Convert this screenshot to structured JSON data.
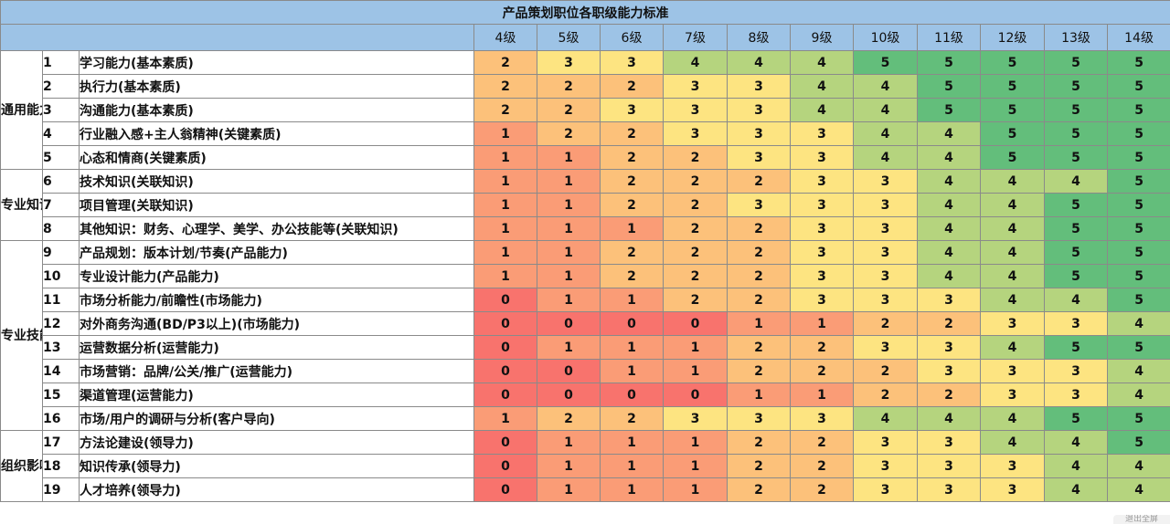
{
  "title": "产品策划职位各职级能力标准",
  "levels": [
    "4级",
    "5级",
    "6级",
    "7级",
    "8级",
    "9级",
    "10级",
    "11级",
    "12级",
    "13级",
    "14级"
  ],
  "color_scale": {
    "0": "#f8736d",
    "1": "#fa9c76",
    "2": "#fcc17a",
    "3": "#fde481",
    "4": "#b5d47e",
    "5": "#63be7b"
  },
  "groups": [
    {
      "label": "通用能力",
      "rows": [
        {
          "idx": "1",
          "name": "学习能力(基本素质)",
          "values": [
            2,
            3,
            3,
            4,
            4,
            4,
            5,
            5,
            5,
            5,
            5
          ]
        },
        {
          "idx": "2",
          "name": "执行力(基本素质)",
          "values": [
            2,
            2,
            2,
            3,
            3,
            4,
            4,
            5,
            5,
            5,
            5
          ]
        },
        {
          "idx": "3",
          "name": "沟通能力(基本素质)",
          "values": [
            2,
            2,
            3,
            3,
            3,
            4,
            4,
            5,
            5,
            5,
            5
          ]
        },
        {
          "idx": "4",
          "name": "行业融入感+主人翁精神(关键素质)",
          "values": [
            1,
            2,
            2,
            3,
            3,
            3,
            4,
            4,
            5,
            5,
            5
          ]
        },
        {
          "idx": "5",
          "name": "心态和情商(关键素质)",
          "values": [
            1,
            1,
            2,
            2,
            3,
            3,
            4,
            4,
            5,
            5,
            5
          ]
        }
      ]
    },
    {
      "label": "专业知识",
      "rows": [
        {
          "idx": "6",
          "name": "技术知识(关联知识)",
          "values": [
            1,
            1,
            2,
            2,
            2,
            3,
            3,
            4,
            4,
            4,
            5
          ]
        },
        {
          "idx": "7",
          "name": "项目管理(关联知识)",
          "values": [
            1,
            1,
            2,
            2,
            3,
            3,
            3,
            4,
            4,
            5,
            5
          ]
        },
        {
          "idx": "8",
          "name": "其他知识：财务、心理学、美学、办公技能等(关联知识)",
          "values": [
            1,
            1,
            1,
            2,
            2,
            3,
            3,
            4,
            4,
            5,
            5
          ]
        }
      ]
    },
    {
      "label": "专业技能",
      "rows": [
        {
          "idx": "9",
          "name": "产品规划：版本计划/节奏(产品能力)",
          "values": [
            1,
            1,
            2,
            2,
            2,
            3,
            3,
            4,
            4,
            5,
            5
          ]
        },
        {
          "idx": "10",
          "name": "专业设计能力(产品能力)",
          "values": [
            1,
            1,
            2,
            2,
            2,
            3,
            3,
            4,
            4,
            5,
            5
          ]
        },
        {
          "idx": "11",
          "name": "市场分析能力/前瞻性(市场能力)",
          "values": [
            0,
            1,
            1,
            2,
            2,
            3,
            3,
            3,
            4,
            4,
            5
          ]
        },
        {
          "idx": "12",
          "name": "对外商务沟通(BD/P3以上)(市场能力)",
          "values": [
            0,
            0,
            0,
            0,
            1,
            1,
            2,
            2,
            3,
            3,
            4
          ]
        },
        {
          "idx": "13",
          "name": "运营数据分析(运营能力)",
          "values": [
            0,
            1,
            1,
            1,
            2,
            2,
            3,
            3,
            4,
            5,
            5
          ]
        },
        {
          "idx": "14",
          "name": "市场营销：品牌/公关/推广(运营能力)",
          "values": [
            0,
            0,
            1,
            1,
            2,
            2,
            2,
            3,
            3,
            3,
            4
          ]
        },
        {
          "idx": "15",
          "name": "渠道管理(运营能力)",
          "values": [
            0,
            0,
            0,
            0,
            1,
            1,
            2,
            2,
            3,
            3,
            4
          ]
        },
        {
          "idx": "16",
          "name": "市场/用户的调研与分析(客户导向)",
          "values": [
            1,
            2,
            2,
            3,
            3,
            3,
            4,
            4,
            4,
            5,
            5
          ]
        }
      ]
    },
    {
      "label": "组织影响力",
      "rows": [
        {
          "idx": "17",
          "name": "方法论建设(领导力)",
          "values": [
            0,
            1,
            1,
            1,
            2,
            2,
            3,
            3,
            4,
            4,
            5
          ]
        },
        {
          "idx": "18",
          "name": "知识传承(领导力)",
          "values": [
            0,
            1,
            1,
            1,
            2,
            2,
            3,
            3,
            3,
            4,
            4
          ]
        },
        {
          "idx": "19",
          "name": "人才培养(领导力)",
          "values": [
            0,
            1,
            1,
            1,
            2,
            2,
            3,
            3,
            3,
            4,
            4
          ]
        }
      ]
    }
  ],
  "footer_badge": "退出全屏"
}
